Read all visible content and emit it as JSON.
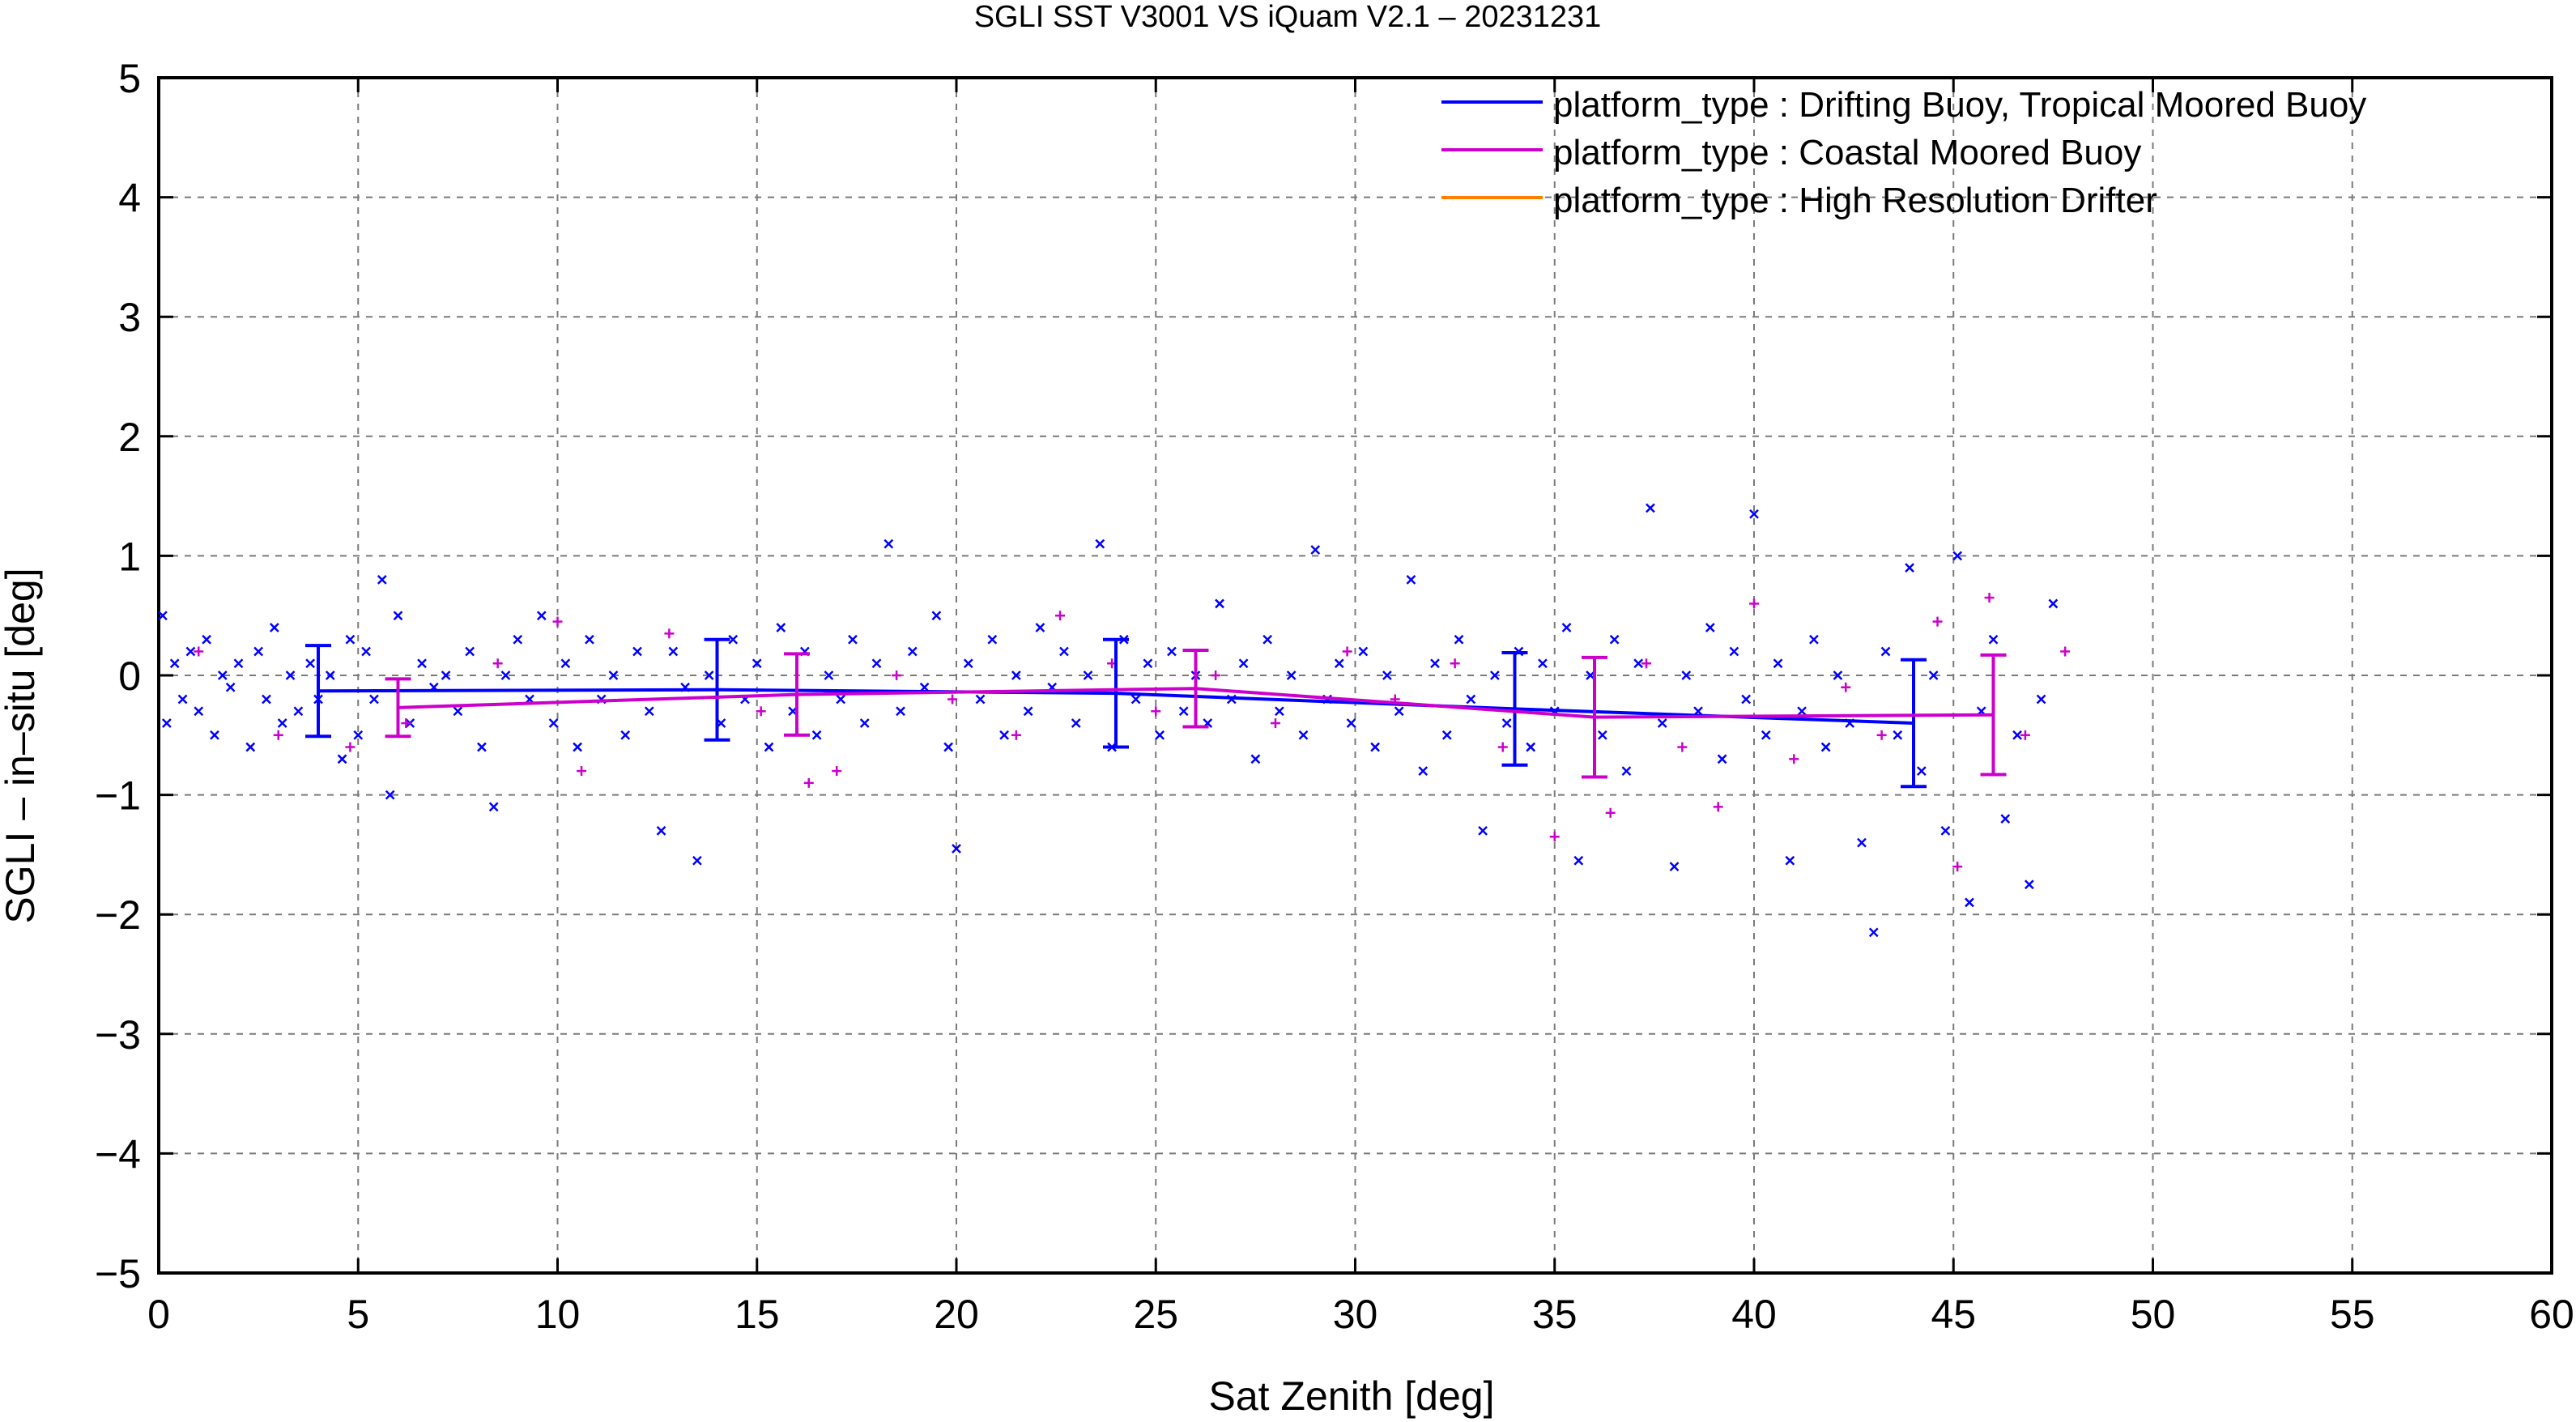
{
  "chart_data": {
    "type": "scatter",
    "title": "SGLI SST V3001 VS iQuam V2.1  – 20231231",
    "xlabel": "Sat Zenith [deg]",
    "ylabel": "SGLI – in–situ [deg]",
    "xlim": [
      0,
      60
    ],
    "ylim": [
      -5,
      5
    ],
    "x_ticks": [
      "0",
      "5",
      "10",
      "15",
      "20",
      "25",
      "30",
      "35",
      "40",
      "45",
      "50",
      "55",
      "60"
    ],
    "y_ticks": [
      "5",
      "4",
      "3",
      "2",
      "1",
      "0",
      "−1",
      "−2",
      "−3",
      "−4",
      "−5"
    ],
    "grid": true,
    "legend_position": "top-right",
    "series": [
      {
        "name": "platform_type : Drifting Buoy, Tropical Moored Buoy",
        "color": "#0000ff",
        "mean_line": {
          "x": [
            4,
            14,
            24,
            34,
            44
          ],
          "y": [
            -0.13,
            -0.12,
            -0.15,
            -0.28,
            -0.4
          ],
          "error": [
            0.38,
            0.42,
            0.45,
            0.47,
            0.53
          ]
        },
        "marker": "x"
      },
      {
        "name": "platform_type : Coastal Moored Buoy",
        "color": "#cc00cc",
        "mean_line": {
          "x": [
            6,
            16,
            26,
            36,
            46
          ],
          "y": [
            -0.27,
            -0.16,
            -0.11,
            -0.35,
            -0.33
          ],
          "error": [
            0.24,
            0.34,
            0.32,
            0.5,
            0.5
          ]
        },
        "marker": "+"
      },
      {
        "name": "platform_type : High Resolution Drifter",
        "color": "#ff8000",
        "mean_line": {
          "x": [],
          "y": [],
          "error": []
        },
        "marker": "x"
      }
    ],
    "scatter_points": {
      "0": [
        [
          0.1,
          0.5
        ],
        [
          0.2,
          -0.4
        ],
        [
          0.4,
          0.1
        ],
        [
          0.6,
          -0.2
        ],
        [
          0.8,
          0.2
        ],
        [
          1.0,
          -0.3
        ],
        [
          1.2,
          0.3
        ],
        [
          1.4,
          -0.5
        ],
        [
          1.6,
          0.0
        ],
        [
          1.8,
          -0.1
        ],
        [
          2.0,
          0.1
        ],
        [
          2.3,
          -0.6
        ],
        [
          2.5,
          0.2
        ],
        [
          2.7,
          -0.2
        ],
        [
          2.9,
          0.4
        ],
        [
          3.1,
          -0.4
        ],
        [
          3.3,
          0.0
        ],
        [
          3.5,
          -0.3
        ],
        [
          3.8,
          0.1
        ],
        [
          4.0,
          -0.2
        ],
        [
          4.3,
          0.0
        ],
        [
          4.6,
          -0.7
        ],
        [
          4.8,
          0.3
        ],
        [
          5.0,
          -0.5
        ],
        [
          5.2,
          0.2
        ],
        [
          5.4,
          -0.2
        ],
        [
          5.6,
          0.8
        ],
        [
          5.8,
          -1.0
        ],
        [
          6.0,
          0.5
        ],
        [
          6.3,
          -0.4
        ],
        [
          6.6,
          0.1
        ],
        [
          6.9,
          -0.1
        ],
        [
          7.2,
          0.0
        ],
        [
          7.5,
          -0.3
        ],
        [
          7.8,
          0.2
        ],
        [
          8.1,
          -0.6
        ],
        [
          8.4,
          -1.1
        ],
        [
          8.7,
          0.0
        ],
        [
          9.0,
          0.3
        ],
        [
          9.3,
          -0.2
        ],
        [
          9.6,
          0.5
        ],
        [
          9.9,
          -0.4
        ],
        [
          10.2,
          0.1
        ],
        [
          10.5,
          -0.6
        ],
        [
          10.8,
          0.3
        ],
        [
          11.1,
          -0.2
        ],
        [
          11.4,
          0.0
        ],
        [
          11.7,
          -0.5
        ],
        [
          12.0,
          0.2
        ],
        [
          12.3,
          -0.3
        ],
        [
          12.6,
          -1.3
        ],
        [
          12.9,
          0.2
        ],
        [
          13.2,
          -0.1
        ],
        [
          13.5,
          -1.55
        ],
        [
          13.8,
          0.0
        ],
        [
          14.1,
          -0.4
        ],
        [
          14.4,
          0.3
        ],
        [
          14.7,
          -0.2
        ],
        [
          15.0,
          0.1
        ],
        [
          15.3,
          -0.6
        ],
        [
          15.6,
          0.4
        ],
        [
          15.9,
          -0.3
        ],
        [
          16.2,
          0.2
        ],
        [
          16.5,
          -0.5
        ],
        [
          16.8,
          0.0
        ],
        [
          17.1,
          -0.2
        ],
        [
          17.4,
          0.3
        ],
        [
          17.7,
          -0.4
        ],
        [
          18.0,
          0.1
        ],
        [
          18.3,
          1.1
        ],
        [
          18.6,
          -0.3
        ],
        [
          18.9,
          0.2
        ],
        [
          19.2,
          -0.1
        ],
        [
          19.5,
          0.5
        ],
        [
          19.8,
          -0.6
        ],
        [
          20.0,
          -1.45
        ],
        [
          20.3,
          0.1
        ],
        [
          20.6,
          -0.2
        ],
        [
          20.9,
          0.3
        ],
        [
          21.2,
          -0.5
        ],
        [
          21.5,
          0.0
        ],
        [
          21.8,
          -0.3
        ],
        [
          22.1,
          0.4
        ],
        [
          22.4,
          -0.1
        ],
        [
          22.7,
          0.2
        ],
        [
          23.0,
          -0.4
        ],
        [
          23.3,
          0.0
        ],
        [
          23.6,
          1.1
        ],
        [
          23.9,
          -0.6
        ],
        [
          24.2,
          0.3
        ],
        [
          24.5,
          -0.2
        ],
        [
          24.8,
          0.1
        ],
        [
          25.1,
          -0.5
        ],
        [
          25.4,
          0.2
        ],
        [
          25.7,
          -0.3
        ],
        [
          26.0,
          0.0
        ],
        [
          26.3,
          -0.4
        ],
        [
          26.6,
          0.6
        ],
        [
          26.9,
          -0.2
        ],
        [
          27.2,
          0.1
        ],
        [
          27.5,
          -0.7
        ],
        [
          27.8,
          0.3
        ],
        [
          28.1,
          -0.3
        ],
        [
          28.4,
          0.0
        ],
        [
          28.7,
          -0.5
        ],
        [
          29.0,
          1.05
        ],
        [
          29.3,
          -0.2
        ],
        [
          29.6,
          0.1
        ],
        [
          29.9,
          -0.4
        ],
        [
          30.2,
          0.2
        ],
        [
          30.5,
          -0.6
        ],
        [
          30.8,
          0.0
        ],
        [
          31.1,
          -0.3
        ],
        [
          31.4,
          0.8
        ],
        [
          31.7,
          -0.8
        ],
        [
          32.0,
          0.1
        ],
        [
          32.3,
          -0.5
        ],
        [
          32.6,
          0.3
        ],
        [
          32.9,
          -0.2
        ],
        [
          33.2,
          -1.3
        ],
        [
          33.5,
          0.0
        ],
        [
          33.8,
          -0.4
        ],
        [
          34.1,
          0.2
        ],
        [
          34.4,
          -0.6
        ],
        [
          34.7,
          0.1
        ],
        [
          35.0,
          -0.3
        ],
        [
          35.3,
          0.4
        ],
        [
          35.6,
          -1.55
        ],
        [
          35.9,
          0.0
        ],
        [
          36.2,
          -0.5
        ],
        [
          36.5,
          0.3
        ],
        [
          36.8,
          -0.8
        ],
        [
          37.1,
          0.1
        ],
        [
          37.4,
          1.4
        ],
        [
          37.7,
          -0.4
        ],
        [
          38.0,
          -1.6
        ],
        [
          38.3,
          0.0
        ],
        [
          38.6,
          -0.3
        ],
        [
          38.9,
          0.4
        ],
        [
          39.2,
          -0.7
        ],
        [
          39.5,
          0.2
        ],
        [
          39.8,
          -0.2
        ],
        [
          40.0,
          1.35
        ],
        [
          40.3,
          -0.5
        ],
        [
          40.6,
          0.1
        ],
        [
          40.9,
          -1.55
        ],
        [
          41.2,
          -0.3
        ],
        [
          41.5,
          0.3
        ],
        [
          41.8,
          -0.6
        ],
        [
          42.1,
          0.0
        ],
        [
          42.4,
          -0.4
        ],
        [
          42.7,
          -1.4
        ],
        [
          43.0,
          -2.15
        ],
        [
          43.3,
          0.2
        ],
        [
          43.6,
          -0.5
        ],
        [
          43.9,
          0.9
        ],
        [
          44.2,
          -0.8
        ],
        [
          44.5,
          0.0
        ],
        [
          44.8,
          -1.3
        ],
        [
          45.1,
          1.0
        ],
        [
          45.4,
          -1.9
        ],
        [
          45.7,
          -0.3
        ],
        [
          46.0,
          0.3
        ],
        [
          46.3,
          -1.2
        ],
        [
          46.6,
          -0.5
        ],
        [
          46.9,
          -1.75
        ],
        [
          47.2,
          -0.2
        ],
        [
          47.5,
          0.6
        ]
      ],
      "1": [
        [
          1.0,
          0.2
        ],
        [
          3.0,
          -0.5
        ],
        [
          4.8,
          -0.6
        ],
        [
          6.2,
          -0.4
        ],
        [
          8.5,
          0.1
        ],
        [
          10.0,
          0.45
        ],
        [
          10.6,
          -0.8
        ],
        [
          12.8,
          0.35
        ],
        [
          15.1,
          -0.3
        ],
        [
          16.3,
          -0.9
        ],
        [
          17.0,
          -0.8
        ],
        [
          18.5,
          0.0
        ],
        [
          19.9,
          -0.2
        ],
        [
          21.5,
          -0.5
        ],
        [
          22.6,
          0.5
        ],
        [
          23.9,
          0.1
        ],
        [
          25.0,
          -0.3
        ],
        [
          26.5,
          0.0
        ],
        [
          28.0,
          -0.4
        ],
        [
          29.8,
          0.2
        ],
        [
          31.0,
          -0.2
        ],
        [
          32.5,
          0.1
        ],
        [
          33.7,
          -0.6
        ],
        [
          35.0,
          -1.35
        ],
        [
          36.4,
          -1.15
        ],
        [
          37.3,
          0.1
        ],
        [
          38.2,
          -0.6
        ],
        [
          39.1,
          -1.1
        ],
        [
          40.0,
          0.6
        ],
        [
          41.0,
          -0.7
        ],
        [
          42.3,
          -0.1
        ],
        [
          43.2,
          -0.5
        ],
        [
          44.6,
          0.45
        ],
        [
          45.1,
          -1.6
        ],
        [
          45.9,
          0.65
        ],
        [
          46.8,
          -0.5
        ],
        [
          47.8,
          0.2
        ]
      ]
    }
  }
}
